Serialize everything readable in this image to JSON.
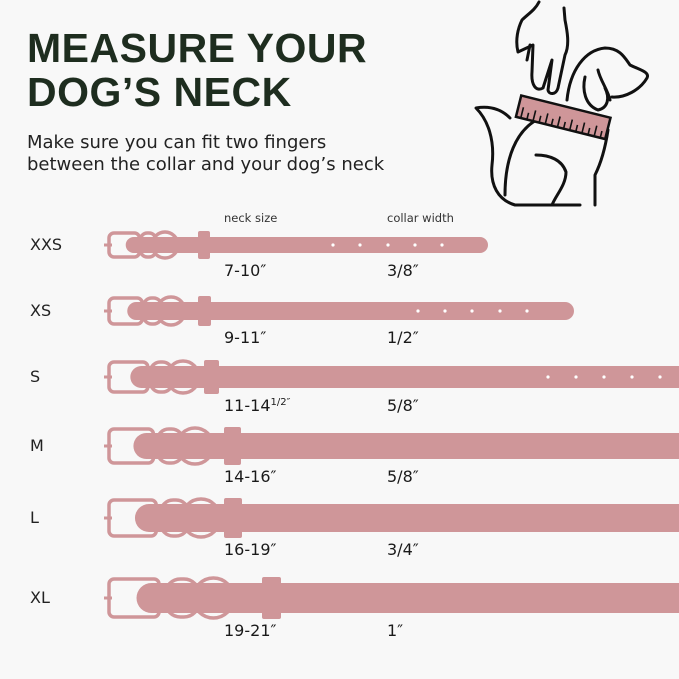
{
  "header": {
    "title_line1": "MEASURE YOUR",
    "title_line2": "DOG’S NECK",
    "subtitle_line1": "Make sure you can fit two fingers",
    "subtitle_line2": "between the collar and your dog’s neck"
  },
  "columns": {
    "neck": "neck size",
    "width": "collar width"
  },
  "colors": {
    "collar": "#cf9699",
    "title": "#1e2d1f",
    "background": "#f8f8f8"
  },
  "illustration": "hand-measuring-dog-neck-icon",
  "sizes": [
    {
      "size": "XXS",
      "neck": "7-10″",
      "width": "3/8″"
    },
    {
      "size": "XS",
      "neck": "9-11″",
      "width": "1/2″"
    },
    {
      "size": "S",
      "neck": "11-14",
      "neck_fraction": "1/2″",
      "width": "5/8″"
    },
    {
      "size": "M",
      "neck": "14-16″",
      "width": "5/8″"
    },
    {
      "size": "L",
      "neck": "16-19″",
      "width": "3/4″"
    },
    {
      "size": "XL",
      "neck": "19-21″",
      "width": "1″"
    }
  ]
}
